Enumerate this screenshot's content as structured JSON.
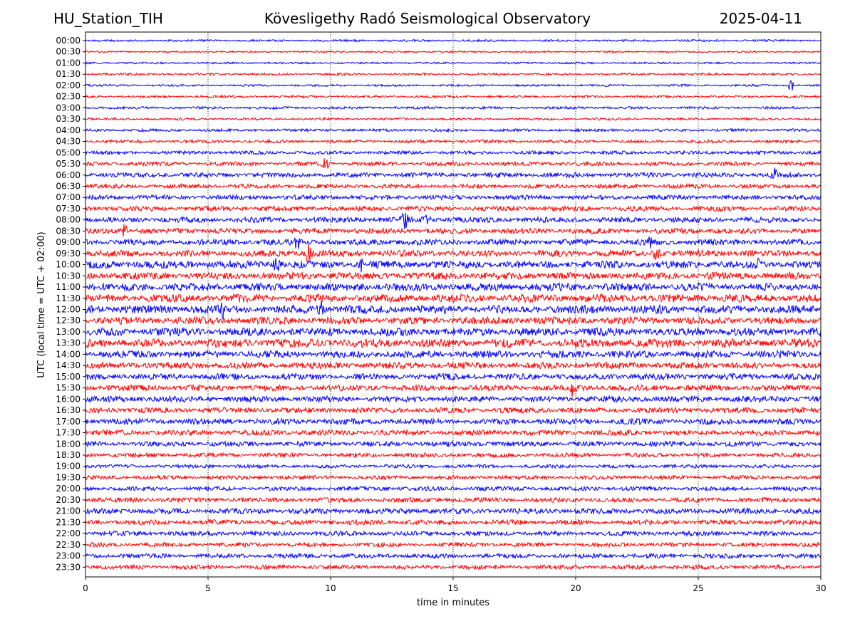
{
  "header": {
    "station": "HU_Station_TIH",
    "title": "Kövesligethy Radó Seismological Observatory",
    "date": "2025-04-11"
  },
  "chart_data": {
    "type": "line",
    "title": "Kövesligethy Radó Seismological Observatory",
    "xlabel": "time in minutes",
    "ylabel": "UTC (local time = UTC + 02:00)",
    "xlim": [
      0,
      30
    ],
    "x_ticks": [
      "0",
      "5",
      "10",
      "15",
      "20",
      "25",
      "30"
    ],
    "x_tick_values": [
      0,
      5,
      10,
      15,
      20,
      25,
      30
    ],
    "grid": "vertical dotted lines at x ticks",
    "colors": [
      "#0000ff",
      "#ff0000"
    ],
    "rows": [
      {
        "label": "00:00",
        "amplitude": 0.18
      },
      {
        "label": "00:30",
        "amplitude": 0.16
      },
      {
        "label": "01:00",
        "amplitude": 0.16
      },
      {
        "label": "01:30",
        "amplitude": 0.2
      },
      {
        "label": "02:00",
        "amplitude": 0.18
      },
      {
        "label": "02:30",
        "amplitude": 0.2
      },
      {
        "label": "03:00",
        "amplitude": 0.22
      },
      {
        "label": "03:30",
        "amplitude": 0.2
      },
      {
        "label": "04:00",
        "amplitude": 0.24
      },
      {
        "label": "04:30",
        "amplitude": 0.26
      },
      {
        "label": "05:00",
        "amplitude": 0.3
      },
      {
        "label": "05:30",
        "amplitude": 0.34
      },
      {
        "label": "06:00",
        "amplitude": 0.4
      },
      {
        "label": "06:30",
        "amplitude": 0.36
      },
      {
        "label": "07:00",
        "amplitude": 0.4
      },
      {
        "label": "07:30",
        "amplitude": 0.42
      },
      {
        "label": "08:00",
        "amplitude": 0.46
      },
      {
        "label": "08:30",
        "amplitude": 0.46
      },
      {
        "label": "09:00",
        "amplitude": 0.5
      },
      {
        "label": "09:30",
        "amplitude": 0.55
      },
      {
        "label": "10:00",
        "amplitude": 0.62
      },
      {
        "label": "10:30",
        "amplitude": 0.6
      },
      {
        "label": "11:00",
        "amplitude": 0.65
      },
      {
        "label": "11:30",
        "amplitude": 0.68
      },
      {
        "label": "12:00",
        "amplitude": 0.7
      },
      {
        "label": "12:30",
        "amplitude": 0.62
      },
      {
        "label": "13:00",
        "amplitude": 0.68
      },
      {
        "label": "13:30",
        "amplitude": 0.72
      },
      {
        "label": "14:00",
        "amplitude": 0.6
      },
      {
        "label": "14:30",
        "amplitude": 0.55
      },
      {
        "label": "15:00",
        "amplitude": 0.52
      },
      {
        "label": "15:30",
        "amplitude": 0.5
      },
      {
        "label": "16:00",
        "amplitude": 0.5
      },
      {
        "label": "16:30",
        "amplitude": 0.48
      },
      {
        "label": "17:00",
        "amplitude": 0.5
      },
      {
        "label": "17:30",
        "amplitude": 0.46
      },
      {
        "label": "18:00",
        "amplitude": 0.42
      },
      {
        "label": "18:30",
        "amplitude": 0.36
      },
      {
        "label": "19:00",
        "amplitude": 0.3
      },
      {
        "label": "19:30",
        "amplitude": 0.34
      },
      {
        "label": "20:00",
        "amplitude": 0.36
      },
      {
        "label": "20:30",
        "amplitude": 0.4
      },
      {
        "label": "21:00",
        "amplitude": 0.46
      },
      {
        "label": "21:30",
        "amplitude": 0.42
      },
      {
        "label": "22:00",
        "amplitude": 0.4
      },
      {
        "label": "22:30",
        "amplitude": 0.36
      },
      {
        "label": "23:00",
        "amplitude": 0.38
      },
      {
        "label": "23:30",
        "amplitude": 0.36
      }
    ],
    "events": [
      {
        "row": "02:00",
        "x": 28.8,
        "strength": 0.9
      },
      {
        "row": "05:30",
        "x": 9.8,
        "strength": 0.9
      },
      {
        "row": "06:00",
        "x": 28.1,
        "strength": 0.8
      },
      {
        "row": "08:00",
        "x": 13.0,
        "strength": 1.6
      },
      {
        "row": "08:00",
        "x": 13.9,
        "strength": 1.4
      },
      {
        "row": "08:30",
        "x": 1.6,
        "strength": 0.9
      },
      {
        "row": "09:00",
        "x": 8.6,
        "strength": 1.2
      },
      {
        "row": "09:00",
        "x": 23.0,
        "strength": 1.1
      },
      {
        "row": "09:30",
        "x": 9.1,
        "strength": 1.6
      },
      {
        "row": "09:30",
        "x": 23.3,
        "strength": 1.3
      },
      {
        "row": "10:00",
        "x": 7.8,
        "strength": 1.2
      },
      {
        "row": "10:00",
        "x": 11.3,
        "strength": 1.2
      },
      {
        "row": "10:00",
        "x": 27.4,
        "strength": 1.0
      },
      {
        "row": "12:00",
        "x": 5.6,
        "strength": 1.0
      },
      {
        "row": "12:00",
        "x": 9.6,
        "strength": 1.0
      },
      {
        "row": "15:30",
        "x": 19.9,
        "strength": 1.2
      }
    ]
  }
}
